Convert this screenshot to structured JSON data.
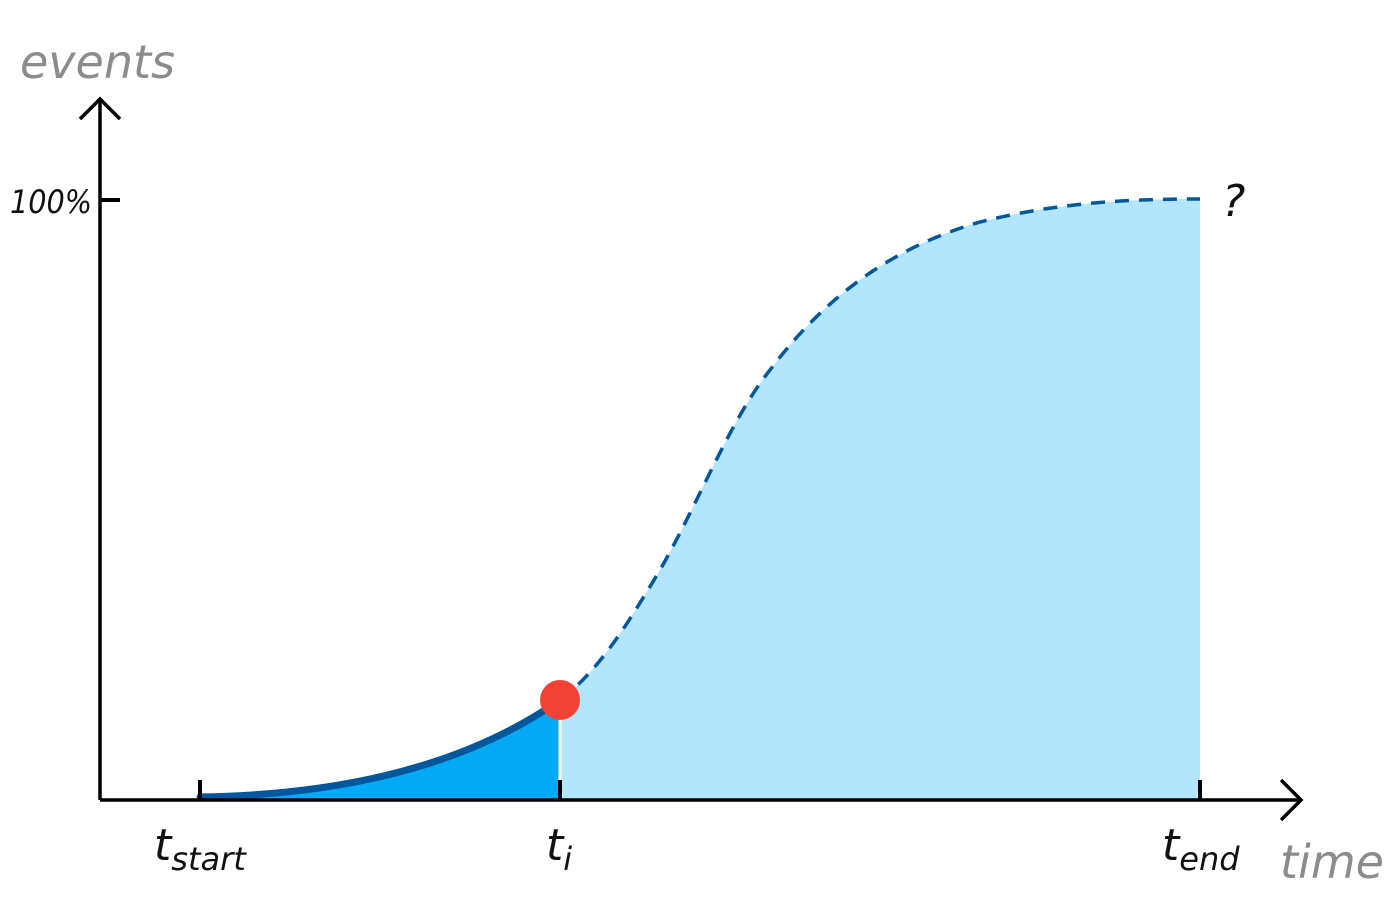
{
  "labels": {
    "y_axis_title": "events",
    "x_axis_title": "time",
    "y_tick": "100%",
    "unknown_marker": "?"
  },
  "x_ticks": [
    {
      "base": "t",
      "sub": "start"
    },
    {
      "base": "t",
      "sub": "i"
    },
    {
      "base": "t",
      "sub": "end"
    }
  ],
  "colors": {
    "axis": "#000000",
    "observed_fill": "#03a9f4",
    "projected_fill": "#b3e5fc",
    "curve": "#01579b",
    "current_point": "#f44336",
    "axis_title": "#8c8c8c"
  }
}
